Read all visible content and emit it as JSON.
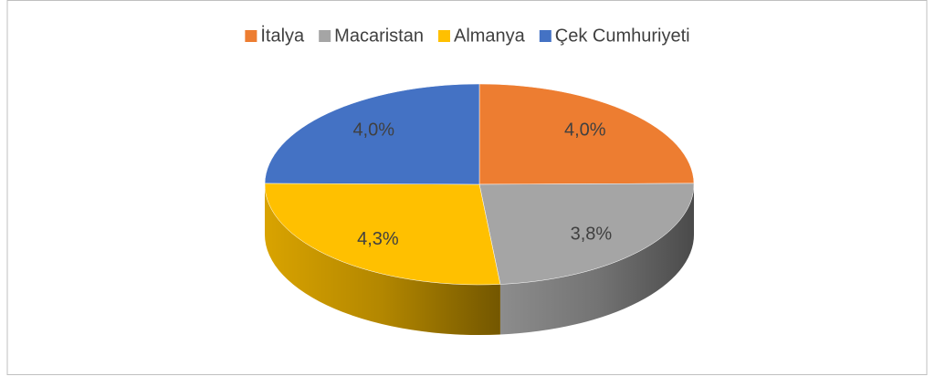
{
  "chart_data": {
    "type": "pie",
    "categories": [
      "İtalya",
      "Macaristan",
      "Almanya",
      "Çek Cumhuriyeti"
    ],
    "values": [
      4.0,
      3.8,
      4.3,
      4.0
    ],
    "value_labels": [
      "4,0%",
      "3,8%",
      "4,3%",
      "4,0%"
    ],
    "colors": [
      "#ED7D31",
      "#A5A5A5",
      "#FFC000",
      "#4472C4"
    ],
    "legend": "top"
  }
}
